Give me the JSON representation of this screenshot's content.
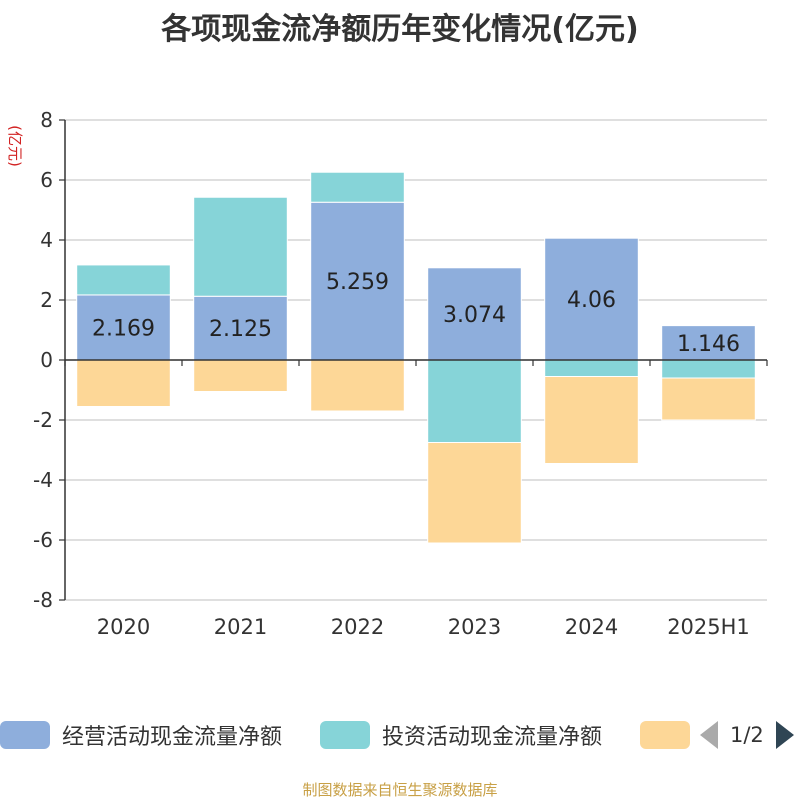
{
  "chart_data": {
    "type": "bar",
    "stacked": true,
    "title": "各项现金流净额历年变化情况(亿元)",
    "ylabel": "(亿元)",
    "categories": [
      "2020",
      "2021",
      "2022",
      "2023",
      "2024",
      "2025H1"
    ],
    "ylim": [
      -8,
      8
    ],
    "yticks": [
      8,
      6,
      4,
      2,
      0,
      -2,
      -4,
      -6,
      -8
    ],
    "grid": true,
    "series": [
      {
        "name": "经营活动现金流量净额",
        "color": "#8eaedc",
        "values": [
          2.169,
          2.125,
          5.259,
          3.074,
          4.06,
          1.146
        ],
        "labels": [
          "2.169",
          "2.125",
          "5.259",
          "3.074",
          "4.06",
          "1.146"
        ]
      },
      {
        "name": "投资活动现金流量净额",
        "color": "#86d4d8",
        "values": [
          1.0,
          3.3,
          1.0,
          -2.75,
          -0.55,
          -0.6
        ]
      },
      {
        "name": "",
        "color": "#fdd797",
        "values": [
          -1.55,
          -1.05,
          -1.7,
          -3.35,
          -2.9,
          -1.4
        ]
      }
    ],
    "legend": {
      "position": "bottom",
      "page": "1/2"
    }
  },
  "source": "制图数据来自恒生聚源数据库"
}
